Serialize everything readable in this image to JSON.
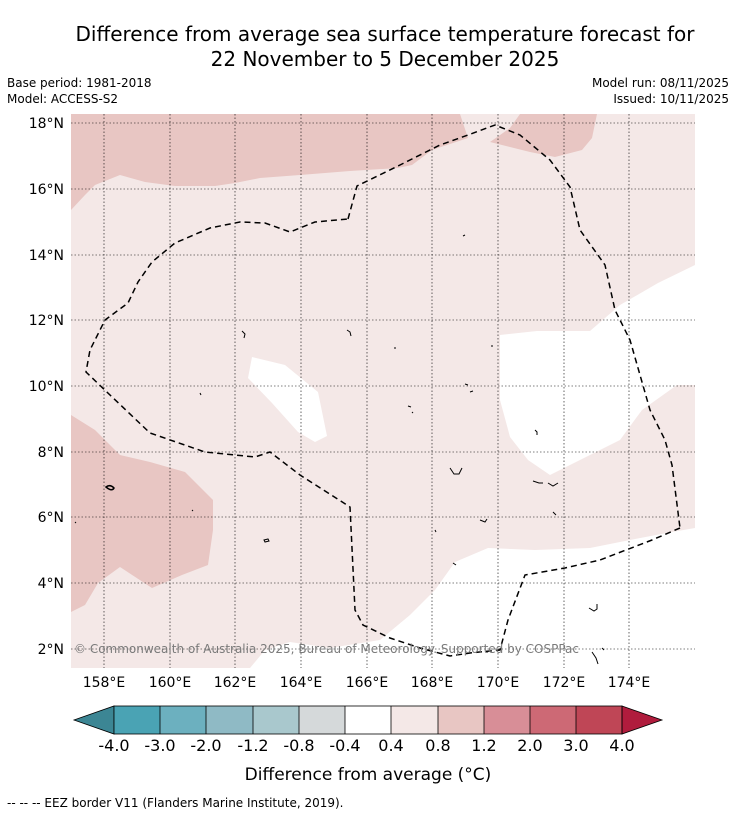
{
  "title": {
    "line1": "Difference from average sea surface temperature forecast for",
    "line2": "22 November to 5 December 2025"
  },
  "meta": {
    "base_period": "Base period: 1981-2018",
    "model": "Model: ACCESS-S2",
    "model_run": "Model run: 08/11/2025",
    "issued": "Issued: 10/11/2025"
  },
  "map": {
    "lon_labels": [
      "158°E",
      "160°E",
      "162°E",
      "164°E",
      "166°E",
      "168°E",
      "170°E",
      "172°E",
      "174°E"
    ],
    "lat_labels": [
      "18°N",
      "16°N",
      "14°N",
      "12°N",
      "10°N",
      "8°N",
      "6°N",
      "4°N",
      "2°N"
    ],
    "lon_range": [
      157.0,
      176.0
    ],
    "lat_range": [
      1.5,
      18.3
    ],
    "copyright": "© Commonwealth of Australia 2025, Bureau of Meteorology. Supported by COSPPac",
    "colors": {
      "anom_0_4_0_8": "#f4e8e7",
      "anom_0_8_1_2": "#e8c6c3",
      "zero_band": "#ffffff"
    }
  },
  "colorbar": {
    "ticks": [
      "-4.0",
      "-3.0",
      "-2.0",
      "-1.2",
      "-0.8",
      "-0.4",
      "0.4",
      "0.8",
      "1.2",
      "2.0",
      "3.0",
      "4.0"
    ],
    "colors": [
      "#4aa3b4",
      "#6cb0bf",
      "#8fbac5",
      "#a9c8cd",
      "#d5d9da",
      "#ffffff",
      "#f4e8e7",
      "#e8c6c3",
      "#d88e97",
      "#cd6975",
      "#bf4656"
    ],
    "extend_low": "#3c8694",
    "extend_high": "#b01c3d",
    "label": "Difference from average (°C)"
  },
  "footer": {
    "legend": "-- -- -- EEZ border V11 (Flanders Marine Institute, 2019)."
  }
}
